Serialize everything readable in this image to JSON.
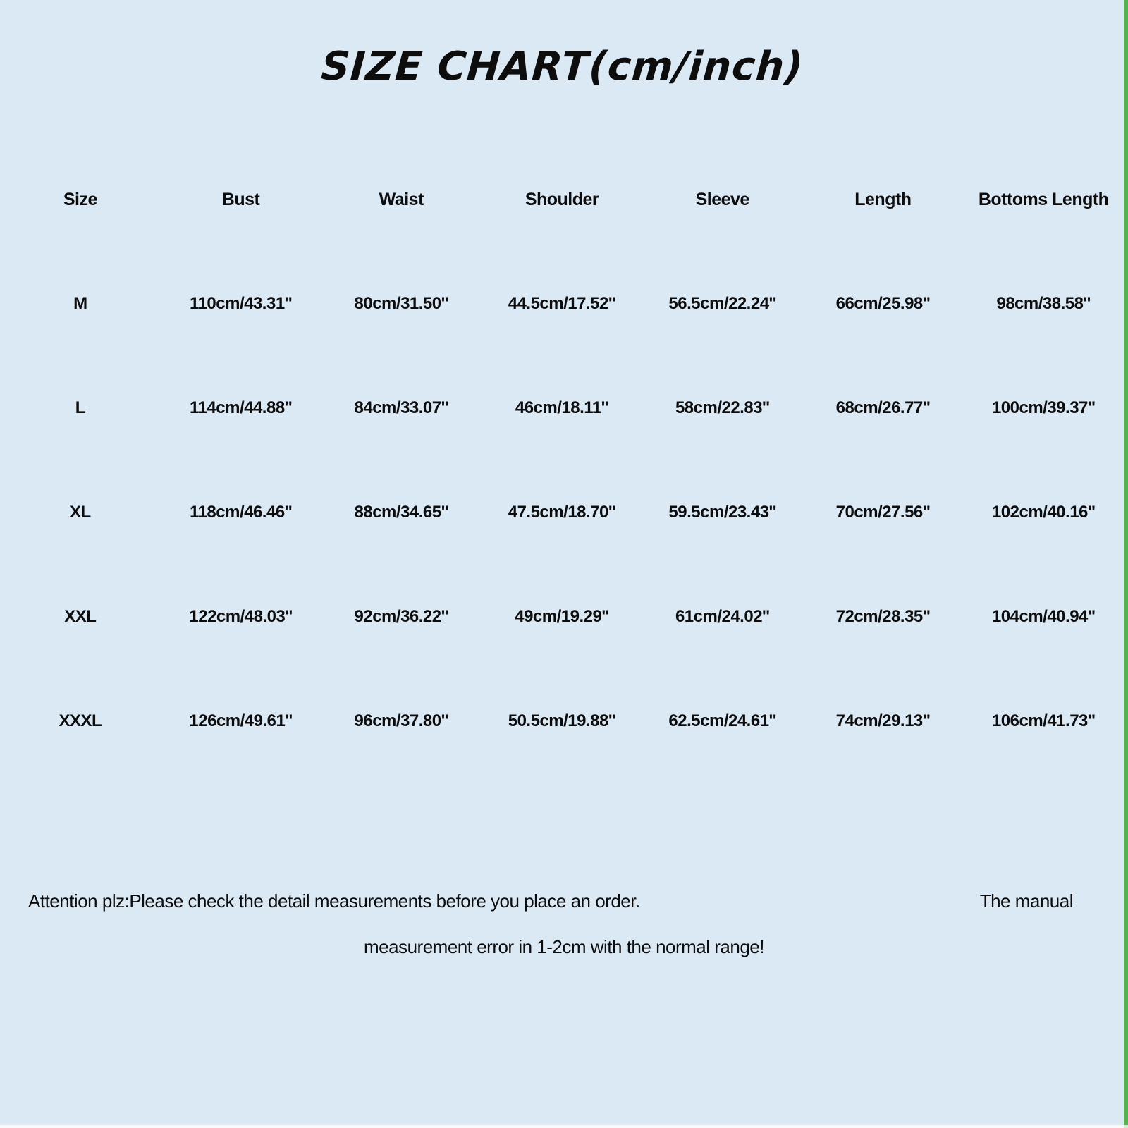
{
  "page": {
    "title": "SIZE CHART(cm/inch)"
  },
  "table": {
    "columns": [
      "Size",
      "Bust",
      "Waist",
      "Shoulder",
      "Sleeve",
      "Length",
      "Bottoms Length"
    ],
    "rows": [
      [
        "M",
        "110cm/43.31''",
        "80cm/31.50''",
        "44.5cm/17.52''",
        "56.5cm/22.24''",
        "66cm/25.98''",
        "98cm/38.58''"
      ],
      [
        "L",
        "114cm/44.88''",
        "84cm/33.07''",
        "46cm/18.11''",
        "58cm/22.83''",
        "68cm/26.77''",
        "100cm/39.37''"
      ],
      [
        "XL",
        "118cm/46.46''",
        "88cm/34.65''",
        "47.5cm/18.70''",
        "59.5cm/23.43''",
        "70cm/27.56''",
        "102cm/40.16''"
      ],
      [
        "XXL",
        "122cm/48.03''",
        "92cm/36.22''",
        "49cm/19.29''",
        "61cm/24.02''",
        "72cm/28.35''",
        "104cm/40.94''"
      ],
      [
        "XXXL",
        "126cm/49.61''",
        "96cm/37.80''",
        "50.5cm/19.88''",
        "62.5cm/24.61''",
        "74cm/29.13''",
        "106cm/41.73''"
      ]
    ]
  },
  "footer": {
    "attention_line1": "Attention plz:Please check the detail measurements before you place an order.",
    "attention_line2": "measurement error in 1-2cm with the normal range!",
    "manual_note": "The manual"
  },
  "colors": {
    "background": "#dbe9f5",
    "right_border": "#54b250",
    "text": "#0d0d0d"
  }
}
